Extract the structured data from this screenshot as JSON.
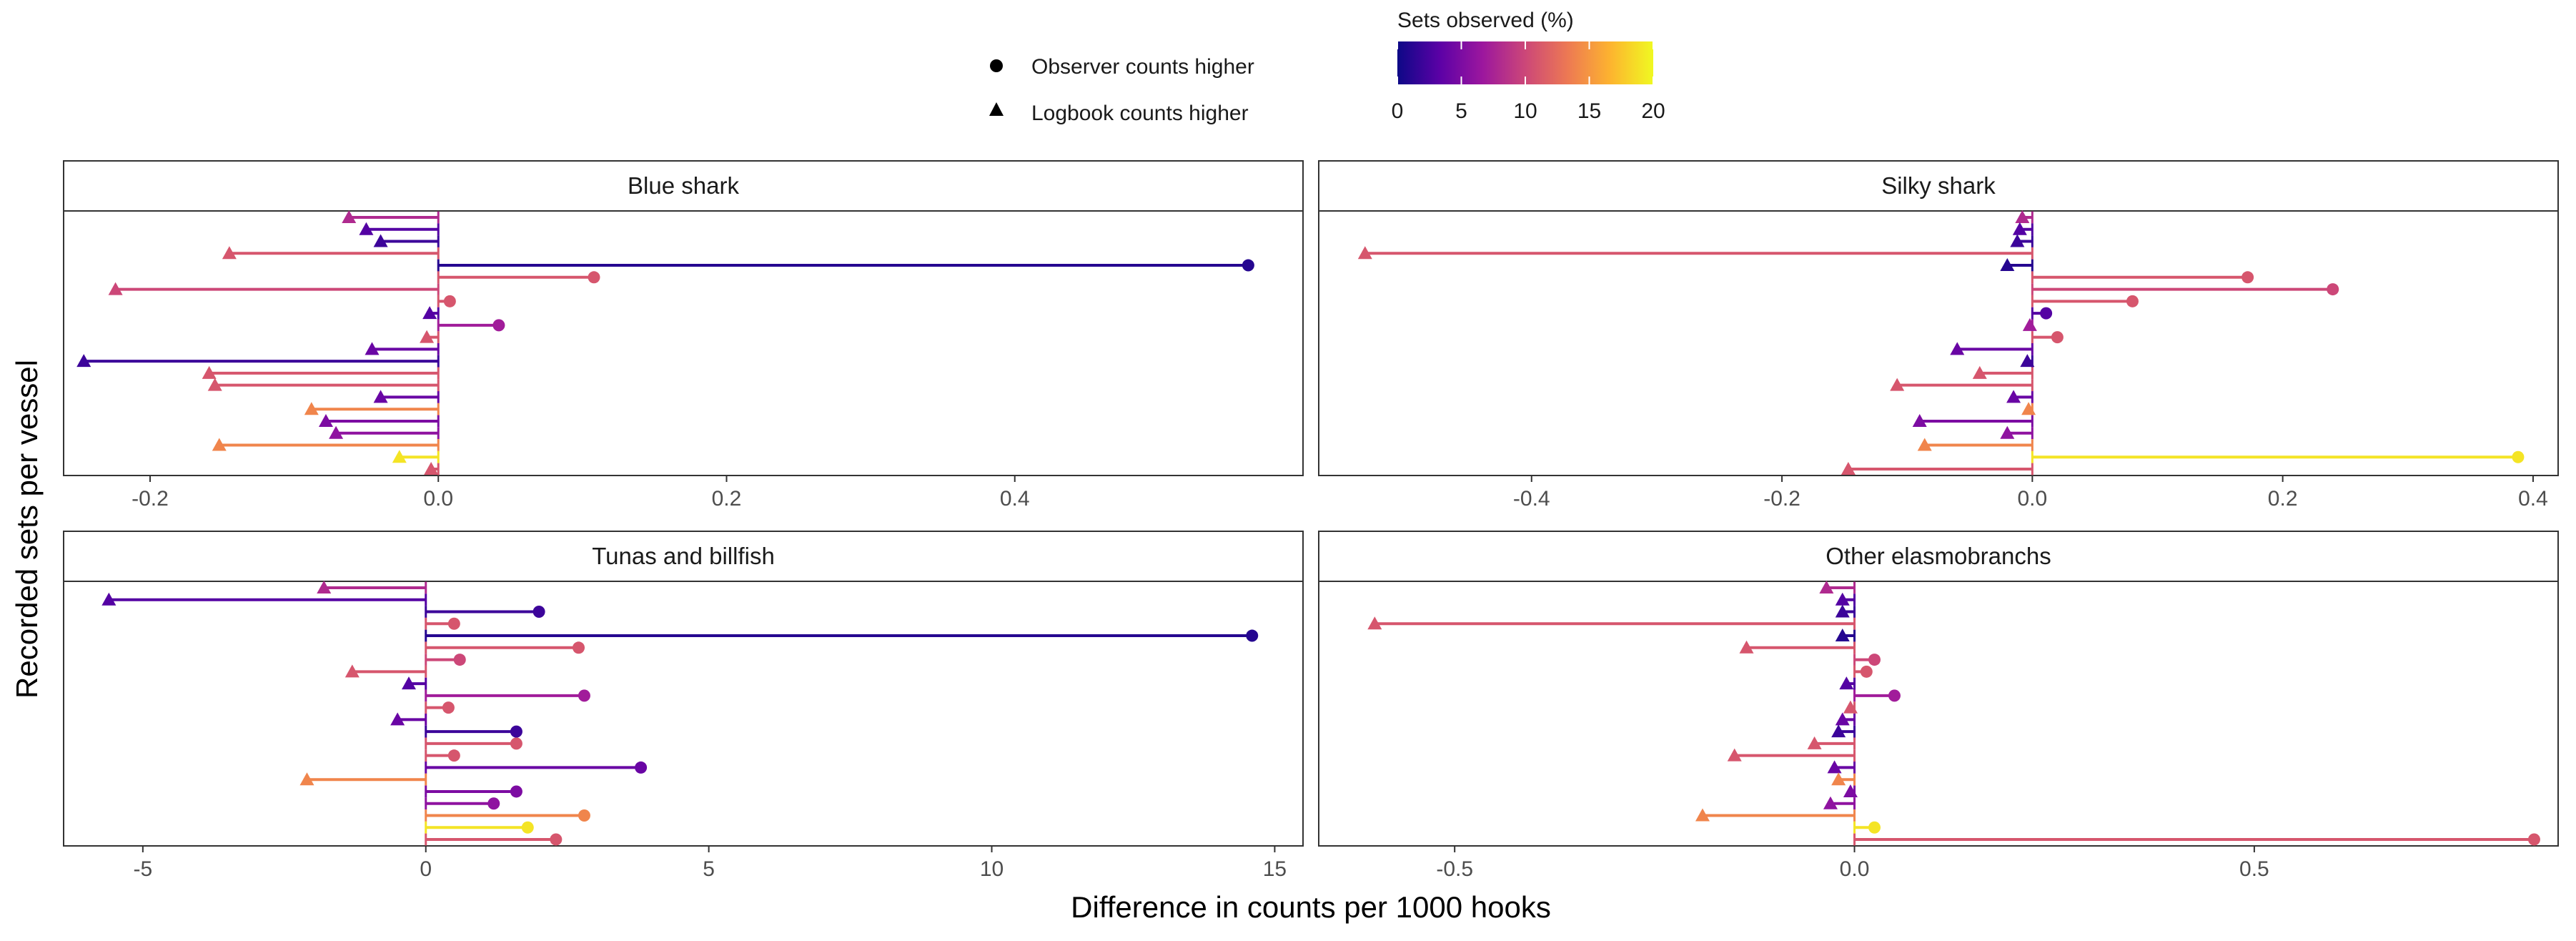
{
  "figure": {
    "xlabel": "Difference in counts per 1000 hooks",
    "ylabel": "Recorded sets per vessel"
  },
  "legend": {
    "shape_items": [
      {
        "shape": "circle",
        "label": "Observer counts higher"
      },
      {
        "shape": "triangle",
        "label": "Logbook counts higher"
      }
    ],
    "colorbar": {
      "title": "Sets observed (%)",
      "min": 0,
      "max": 20,
      "ticks": [
        0,
        5,
        10,
        15,
        20
      ],
      "palette": [
        "#0d0887",
        "#5c01a6",
        "#9c179e",
        "#cc4778",
        "#ed7953",
        "#fdb42f",
        "#f0f921"
      ]
    }
  },
  "chart_data": [
    {
      "type": "lollipop",
      "title": "Blue shark",
      "xlim": [
        -0.26,
        0.6
      ],
      "xticks": [
        -0.2,
        0.0,
        0.2,
        0.4
      ],
      "tick_labels": [
        "-0.2",
        "0.0",
        "0.2",
        "0.4"
      ],
      "values": [
        -0.062,
        -0.05,
        -0.04,
        -0.145,
        0.562,
        0.108,
        -0.224,
        0.008,
        -0.006,
        0.042,
        -0.008,
        -0.046,
        -0.246,
        -0.159,
        -0.155,
        -0.04,
        -0.088,
        -0.078,
        -0.071,
        -0.152,
        -0.027,
        -0.005
      ],
      "pct_observed": [
        8,
        3,
        2,
        11,
        1,
        11,
        10,
        11,
        3,
        7,
        11,
        4,
        2,
        11,
        11,
        4,
        14,
        5,
        6,
        14,
        19,
        11
      ]
    },
    {
      "type": "lollipop",
      "title": "Silky shark",
      "xlim": [
        -0.57,
        0.42
      ],
      "xticks": [
        -0.4,
        -0.2,
        0.0,
        0.2,
        0.4
      ],
      "tick_labels": [
        "-0.4",
        "-0.2",
        "0.0",
        "0.2",
        "0.4"
      ],
      "values": [
        -0.008,
        -0.01,
        -0.012,
        -0.533,
        -0.02,
        0.172,
        0.24,
        0.08,
        0.011,
        -0.002,
        0.02,
        -0.06,
        -0.004,
        -0.042,
        -0.108,
        -0.015,
        -0.003,
        -0.09,
        -0.02,
        -0.086,
        0.388,
        -0.147
      ],
      "pct_observed": [
        8,
        3,
        2,
        11,
        1,
        11,
        10,
        11,
        3,
        7,
        11,
        4,
        2,
        11,
        11,
        4,
        14,
        5,
        6,
        14,
        19,
        11
      ]
    },
    {
      "type": "lollipop",
      "title": "Tunas and billfish",
      "xlim": [
        -6.4,
        15.5
      ],
      "xticks": [
        -5,
        0,
        5,
        10,
        15
      ],
      "tick_labels": [
        "-5",
        "0",
        "5",
        "10",
        "15"
      ],
      "values": [
        -1.8,
        -5.6,
        2.0,
        0.5,
        14.6,
        2.7,
        0.6,
        -1.3,
        -0.3,
        2.8,
        0.4,
        -0.5,
        1.6,
        1.6,
        0.5,
        3.8,
        -2.1,
        1.6,
        1.2,
        2.8,
        1.8,
        2.3
      ],
      "pct_observed": [
        8,
        3,
        2,
        11,
        1,
        11,
        10,
        11,
        3,
        7,
        11,
        4,
        2,
        11,
        11,
        4,
        14,
        5,
        6,
        14,
        19,
        11
      ]
    },
    {
      "type": "lollipop",
      "title": "Other elasmobranchs",
      "xlim": [
        -0.67,
        0.88
      ],
      "xticks": [
        -0.5,
        0.0,
        0.5
      ],
      "tick_labels": [
        "-0.5",
        "0.0",
        "0.5"
      ],
      "values": [
        -0.035,
        -0.015,
        -0.015,
        -0.6,
        -0.015,
        -0.135,
        0.025,
        0.015,
        -0.01,
        0.05,
        -0.005,
        -0.015,
        -0.02,
        -0.05,
        -0.15,
        -0.025,
        -0.02,
        -0.005,
        -0.03,
        -0.19,
        0.025,
        0.85
      ],
      "pct_observed": [
        8,
        3,
        2,
        11,
        1,
        11,
        10,
        11,
        3,
        7,
        11,
        4,
        2,
        11,
        11,
        4,
        14,
        5,
        6,
        14,
        19,
        11
      ]
    }
  ]
}
